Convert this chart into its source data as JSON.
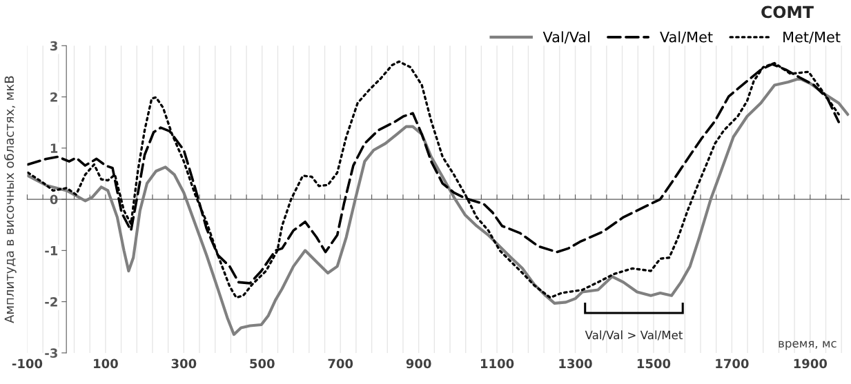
{
  "chart_data": {
    "type": "line",
    "title": "COMT",
    "xlabel": "время, мс",
    "ylabel": "Амплитуда в височных областях, мкВ",
    "xlim": [
      -100,
      2000
    ],
    "ylim": [
      -3,
      3
    ],
    "yticks": [
      -3,
      -2,
      -1,
      0,
      1,
      2,
      3
    ],
    "xticks": [
      -100,
      {
        "value": -60,
        "label": null
      },
      {
        "value": -20,
        "label": null
      },
      {
        "value": 20,
        "label": null
      },
      {
        "value": 60,
        "label": null
      },
      100,
      {
        "value": 140,
        "label": null
      },
      {
        "value": 180,
        "label": null
      },
      {
        "value": 220,
        "label": null
      },
      {
        "value": 260,
        "label": null
      },
      300,
      {
        "value": 340,
        "label": null
      },
      {
        "value": 380,
        "label": null
      },
      {
        "value": 420,
        "label": null
      },
      {
        "value": 460,
        "label": null
      },
      500,
      {
        "value": 540,
        "label": null
      },
      {
        "value": 580,
        "label": null
      },
      {
        "value": 620,
        "label": null
      },
      {
        "value": 660,
        "label": null
      },
      700,
      {
        "value": 740,
        "label": null
      },
      {
        "value": 780,
        "label": null
      },
      {
        "value": 820,
        "label": null
      },
      {
        "value": 860,
        "label": null
      },
      900,
      {
        "value": 940,
        "label": null
      },
      {
        "value": 980,
        "label": null
      },
      {
        "value": 1020,
        "label": null
      },
      {
        "value": 1060,
        "label": null
      },
      1100,
      {
        "value": 1140,
        "label": null
      },
      {
        "value": 1180,
        "label": null
      },
      {
        "value": 1220,
        "label": null
      },
      {
        "value": 1260,
        "label": null
      },
      1300,
      {
        "value": 1340,
        "label": null
      },
      {
        "value": 1380,
        "label": null
      },
      {
        "value": 1420,
        "label": null
      },
      {
        "value": 1460,
        "label": null
      },
      1500,
      {
        "value": 1540,
        "label": null
      },
      {
        "value": 1580,
        "label": null
      },
      {
        "value": 1620,
        "label": null
      },
      {
        "value": 1660,
        "label": null
      },
      1700,
      {
        "value": 1740,
        "label": null
      },
      {
        "value": 1780,
        "label": null
      },
      {
        "value": 1820,
        "label": null
      },
      {
        "value": 1860,
        "label": null
      },
      1900,
      {
        "value": 1940,
        "label": null
      },
      {
        "value": 1980,
        "label": null
      }
    ],
    "grid": "x",
    "legend": "top right",
    "annotations": [
      "Val/Val > Val/Met"
    ],
    "series": [
      {
        "name": "Val/Val",
        "color": "#808080",
        "line_style": "solid",
        "x": [
          -98,
          -51,
          1,
          25,
          48,
          66,
          89,
          106,
          130,
          147,
          159,
          171,
          188,
          206,
          229,
          253,
          276,
          300,
          329,
          358,
          387,
          411,
          428,
          446,
          469,
          498,
          516,
          534,
          551,
          580,
          610,
          639,
          668,
          692,
          715,
          738,
          762,
          785,
          815,
          844,
          868,
          885,
          908,
          932,
          961,
          990,
          1019,
          1048,
          1078,
          1107,
          1136,
          1165,
          1195,
          1224,
          1247,
          1276,
          1300,
          1318,
          1358,
          1394,
          1423,
          1458,
          1493,
          1517,
          1546,
          1570,
          1593,
          1617,
          1646,
          1669,
          1704,
          1739,
          1774,
          1809,
          1844,
          1873,
          1903,
          1938,
          1973,
          1996
        ],
        "values": [
          0.46,
          0.27,
          0.17,
          0.07,
          -0.03,
          0.04,
          0.24,
          0.17,
          -0.35,
          -1.0,
          -1.4,
          -1.14,
          -0.22,
          0.31,
          0.55,
          0.63,
          0.48,
          0.13,
          -0.48,
          -1.09,
          -1.75,
          -2.31,
          -2.64,
          -2.51,
          -2.47,
          -2.45,
          -2.27,
          -1.97,
          -1.75,
          -1.31,
          -1.0,
          -1.22,
          -1.44,
          -1.31,
          -0.74,
          0,
          0.74,
          0.96,
          1.09,
          1.27,
          1.42,
          1.42,
          1.27,
          0.83,
          0.44,
          0.04,
          -0.31,
          -0.52,
          -0.7,
          -0.92,
          -1.14,
          -1.35,
          -1.66,
          -1.88,
          -2.03,
          -2.01,
          -1.94,
          -1.81,
          -1.77,
          -1.51,
          -1.62,
          -1.81,
          -1.88,
          -1.83,
          -1.88,
          -1.62,
          -1.31,
          -0.74,
          0,
          0.48,
          1.22,
          1.62,
          1.88,
          2.23,
          2.29,
          2.36,
          2.25,
          2.05,
          1.88,
          1.66
        ]
      },
      {
        "name": "Val/Met",
        "color": "#000000",
        "line_style": "dashed",
        "x": [
          -98,
          -51,
          -22,
          7,
          25,
          48,
          77,
          100,
          118,
          141,
          165,
          183,
          200,
          223,
          241,
          264,
          300,
          329,
          358,
          387,
          417,
          440,
          469,
          498,
          534,
          551,
          580,
          610,
          639,
          662,
          692,
          709,
          733,
          762,
          797,
          838,
          861,
          885,
          908,
          932,
          961,
          990,
          1019,
          1066,
          1089,
          1113,
          1159,
          1206,
          1253,
          1282,
          1312,
          1371,
          1423,
          1482,
          1517,
          1552,
          1587,
          1622,
          1657,
          1692,
          1739,
          1774,
          1803,
          1838,
          1873,
          1910,
          1944,
          1973
        ],
        "values": [
          0.68,
          0.79,
          0.83,
          0.74,
          0.81,
          0.66,
          0.79,
          0.66,
          0.61,
          -0.26,
          -0.61,
          0.13,
          0.87,
          1.31,
          1.4,
          1.33,
          0.96,
          0.22,
          -0.57,
          -1.09,
          -1.31,
          -1.62,
          -1.64,
          -1.4,
          -1.0,
          -0.96,
          -0.61,
          -0.44,
          -0.74,
          -1.03,
          -0.7,
          -0.09,
          0.66,
          1.09,
          1.35,
          1.51,
          1.62,
          1.68,
          1.27,
          0.74,
          0.31,
          0.13,
          0.02,
          -0.09,
          -0.26,
          -0.52,
          -0.66,
          -0.92,
          -1.03,
          -0.96,
          -0.83,
          -0.63,
          -0.35,
          -0.13,
          0,
          0.39,
          0.79,
          1.18,
          1.53,
          2.01,
          2.31,
          2.53,
          2.64,
          2.53,
          2.38,
          2.23,
          1.97,
          1.51
        ]
      },
      {
        "name": "Met/Met",
        "color": "#000000",
        "line_style": "dotted",
        "x": [
          -98,
          -57,
          -34,
          1,
          25,
          48,
          71,
          89,
          106,
          124,
          147,
          165,
          183,
          200,
          218,
          229,
          247,
          270,
          300,
          329,
          358,
          387,
          417,
          434,
          452,
          475,
          510,
          539,
          551,
          574,
          604,
          627,
          645,
          668,
          692,
          715,
          744,
          774,
          803,
          832,
          850,
          879,
          908,
          932,
          961,
          990,
          1019,
          1048,
          1078,
          1107,
          1136,
          1165,
          1195,
          1236,
          1265,
          1318,
          1358,
          1399,
          1446,
          1493,
          1517,
          1540,
          1563,
          1587,
          1610,
          1634,
          1657,
          1680,
          1715,
          1739,
          1756,
          1780,
          1809,
          1850,
          1896,
          1925,
          1973
        ],
        "values": [
          0.52,
          0.31,
          0.17,
          0.22,
          0.09,
          0.48,
          0.68,
          0.39,
          0.37,
          0.48,
          -0.22,
          -0.48,
          0.57,
          1.35,
          1.97,
          1.99,
          1.79,
          1.27,
          0.74,
          0.09,
          -0.44,
          -1.09,
          -1.7,
          -1.92,
          -1.88,
          -1.66,
          -1.4,
          -1.0,
          -0.52,
          0,
          0.46,
          0.44,
          0.26,
          0.28,
          0.52,
          1.22,
          1.88,
          2.14,
          2.36,
          2.62,
          2.69,
          2.58,
          2.23,
          1.53,
          0.83,
          0.48,
          0.09,
          -0.35,
          -0.61,
          -1.0,
          -1.22,
          -1.44,
          -1.68,
          -1.92,
          -1.83,
          -1.77,
          -1.62,
          -1.46,
          -1.35,
          -1.4,
          -1.16,
          -1.14,
          -0.74,
          -0.22,
          0.22,
          0.66,
          1.09,
          1.35,
          1.62,
          1.92,
          2.31,
          2.58,
          2.66,
          2.45,
          2.49,
          2.18,
          1.66
        ]
      }
    ]
  }
}
